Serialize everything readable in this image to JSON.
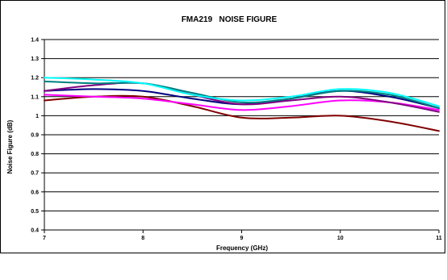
{
  "chart_data": {
    "type": "line",
    "title": "FMA219   NOISE FIGURE",
    "xlabel": "Frequency (GHz)",
    "ylabel": "Noise Figure (dB)",
    "xlim": [
      7,
      11
    ],
    "ylim": [
      0.4,
      1.4
    ],
    "x_ticks": [
      "7",
      "8",
      "9",
      "10",
      "11"
    ],
    "y_ticks": [
      "0.4",
      "0.5",
      "0.6",
      "0.7",
      "0.8",
      "0.9",
      "1",
      "1.1",
      "1.2",
      "1.3",
      "1.4"
    ],
    "grid": "horizontal",
    "legend": "none",
    "x": [
      7,
      7.5,
      8,
      8.5,
      9,
      9.5,
      10,
      10.5,
      11
    ],
    "series": [
      {
        "color": "#800000",
        "values": [
          1.08,
          1.1,
          1.1,
          1.05,
          0.99,
          0.99,
          1.0,
          0.97,
          0.92
        ]
      },
      {
        "color": "#FF00FF",
        "values": [
          1.11,
          1.1,
          1.09,
          1.06,
          1.03,
          1.05,
          1.08,
          1.07,
          1.03
        ]
      },
      {
        "color": "#000080",
        "values": [
          1.13,
          1.14,
          1.13,
          1.09,
          1.06,
          1.09,
          1.13,
          1.1,
          1.04
        ]
      },
      {
        "color": "#800080",
        "values": [
          1.13,
          1.16,
          1.17,
          1.11,
          1.06,
          1.08,
          1.1,
          1.07,
          1.02
        ]
      },
      {
        "color": "#008080",
        "values": [
          1.18,
          1.17,
          1.17,
          1.12,
          1.07,
          1.09,
          1.13,
          1.11,
          1.04
        ]
      },
      {
        "color": "#00FFFF",
        "values": [
          1.2,
          1.19,
          1.17,
          1.11,
          1.08,
          1.1,
          1.14,
          1.12,
          1.05
        ]
      }
    ]
  }
}
